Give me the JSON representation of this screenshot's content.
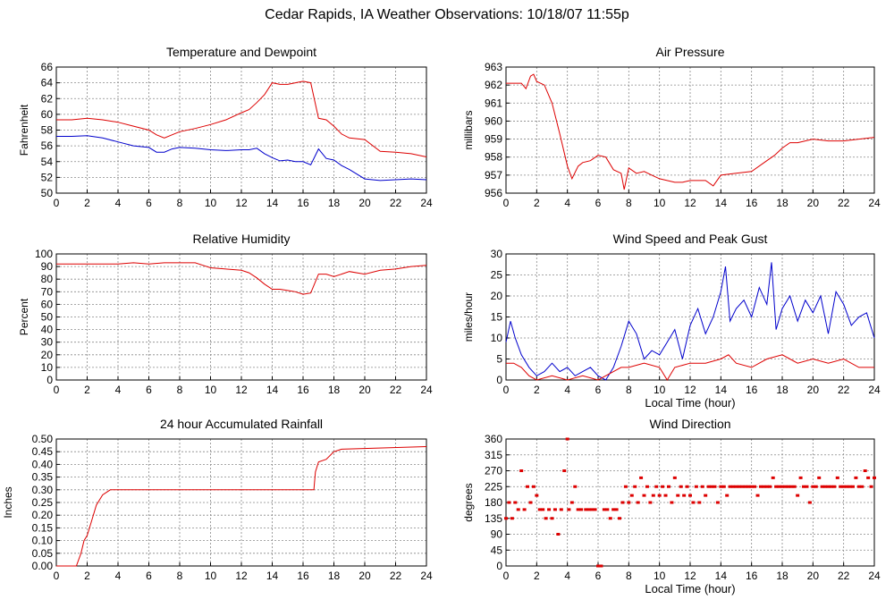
{
  "page_title": "Cedar Rapids, IA Weather Observations: 10/18/07 11:55p",
  "colors": {
    "red": "#dd0000",
    "blue": "#0000cc",
    "grid": "#888888"
  },
  "chart_data": [
    {
      "id": "temp",
      "type": "line",
      "title": "Temperature and Dewpoint",
      "ylabel": "Fahrenheit",
      "xlabel": "",
      "xlim": [
        0,
        24
      ],
      "ylim": [
        50,
        66
      ],
      "xticks": [
        0,
        2,
        4,
        6,
        8,
        10,
        12,
        14,
        16,
        18,
        20,
        22,
        24
      ],
      "yticks": [
        50,
        52,
        54,
        56,
        58,
        60,
        62,
        64,
        66
      ],
      "grid": true,
      "series": [
        {
          "color": "red",
          "x": [
            0,
            1,
            2,
            3,
            4,
            5,
            6,
            6.5,
            7,
            7.5,
            8,
            9,
            10,
            11,
            12,
            12.5,
            13,
            13.5,
            14,
            14.5,
            15,
            15.5,
            16,
            16.5,
            17,
            17.5,
            18,
            18.5,
            19,
            20,
            21,
            22,
            23,
            24
          ],
          "y": [
            59.3,
            59.3,
            59.5,
            59.3,
            59,
            58.5,
            58,
            57.4,
            57,
            57.4,
            57.8,
            58.2,
            58.7,
            59.3,
            60.2,
            60.6,
            61.5,
            62.5,
            64,
            63.8,
            63.8,
            64,
            64.2,
            64,
            59.5,
            59.3,
            58.5,
            57.5,
            57,
            56.8,
            55.3,
            55.2,
            55,
            54.6
          ]
        },
        {
          "color": "blue",
          "x": [
            0,
            1,
            2,
            3,
            4,
            5,
            6,
            6.5,
            7,
            7.5,
            8,
            9,
            10,
            11,
            12,
            12.5,
            13,
            13.5,
            14,
            14.5,
            15,
            15.5,
            16,
            16.5,
            17,
            17.5,
            18,
            18.5,
            19,
            20,
            21,
            22,
            23,
            24
          ],
          "y": [
            57.2,
            57.2,
            57.3,
            57,
            56.5,
            56,
            55.8,
            55.2,
            55.2,
            55.6,
            55.8,
            55.7,
            55.5,
            55.4,
            55.5,
            55.5,
            55.7,
            55,
            54.5,
            54.1,
            54.2,
            54,
            54,
            53.6,
            55.6,
            54.4,
            54.2,
            53.5,
            53,
            51.8,
            51.6,
            51.7,
            51.8,
            51.7
          ]
        }
      ]
    },
    {
      "id": "pressure",
      "type": "line",
      "title": "Air Pressure",
      "ylabel": "millibars",
      "xlabel": "",
      "xlim": [
        0,
        24
      ],
      "ylim": [
        956,
        963
      ],
      "xticks": [
        0,
        2,
        4,
        6,
        8,
        10,
        12,
        14,
        16,
        18,
        20,
        22,
        24
      ],
      "yticks": [
        956,
        957,
        958,
        959,
        960,
        961,
        962,
        963
      ],
      "grid": true,
      "series": [
        {
          "color": "red",
          "x": [
            0,
            0.5,
            1,
            1.3,
            1.6,
            1.8,
            2,
            2.5,
            3,
            3.5,
            4,
            4.3,
            4.7,
            5,
            5.5,
            6,
            6.5,
            7,
            7.5,
            7.7,
            8,
            8.5,
            9,
            9.5,
            10,
            11,
            11.5,
            12,
            13,
            13.5,
            14,
            15,
            16,
            17,
            17.5,
            18,
            18.5,
            19,
            20,
            21,
            22,
            23,
            24
          ],
          "y": [
            962.1,
            962.1,
            962.1,
            961.8,
            962.5,
            962.6,
            962.2,
            962,
            961,
            959.3,
            957.5,
            956.8,
            957.5,
            957.7,
            957.8,
            958.1,
            958,
            957.3,
            957.1,
            956.2,
            957.4,
            957.1,
            957.2,
            957,
            956.8,
            956.6,
            956.6,
            956.7,
            956.7,
            956.4,
            957,
            957.1,
            957.2,
            957.8,
            958.1,
            958.5,
            958.8,
            958.8,
            959,
            958.9,
            958.9,
            959,
            959.1
          ]
        }
      ]
    },
    {
      "id": "humidity",
      "type": "line",
      "title": "Relative Humidity",
      "ylabel": "Percent",
      "xlabel": "",
      "xlim": [
        0,
        24
      ],
      "ylim": [
        0,
        100
      ],
      "xticks": [
        0,
        2,
        4,
        6,
        8,
        10,
        12,
        14,
        16,
        18,
        20,
        22,
        24
      ],
      "yticks": [
        0,
        10,
        20,
        30,
        40,
        50,
        60,
        70,
        80,
        90,
        100
      ],
      "grid": true,
      "series": [
        {
          "color": "red",
          "x": [
            0,
            1,
            2,
            3,
            4,
            5,
            6,
            7,
            8,
            9,
            9.5,
            10,
            11,
            12,
            12.5,
            13,
            13.5,
            14,
            14.5,
            15,
            15.5,
            16,
            16.5,
            17,
            17.5,
            18,
            19,
            20,
            21,
            22,
            23,
            24
          ],
          "y": [
            92,
            92,
            92,
            92,
            92,
            93,
            92,
            93,
            93,
            93,
            91,
            89,
            88,
            87,
            85,
            81,
            76,
            72,
            72,
            71,
            70,
            68,
            69,
            84,
            84,
            82,
            86,
            84,
            87,
            88,
            90,
            91
          ]
        }
      ]
    },
    {
      "id": "wind",
      "type": "line",
      "title": "Wind Speed and Peak Gust",
      "ylabel": "miles/hour",
      "xlabel": "Local Time (hour)",
      "xlim": [
        0,
        24
      ],
      "ylim": [
        0,
        30
      ],
      "xticks": [
        0,
        2,
        4,
        6,
        8,
        10,
        12,
        14,
        16,
        18,
        20,
        22,
        24
      ],
      "yticks": [
        0,
        5,
        10,
        15,
        20,
        25,
        30
      ],
      "grid": true,
      "series": [
        {
          "color": "blue",
          "x": [
            0,
            0.3,
            0.6,
            1,
            1.5,
            2,
            2.5,
            3,
            3.5,
            4,
            4.5,
            5,
            5.5,
            6,
            6.5,
            7,
            7.5,
            8,
            8.5,
            9,
            9.5,
            10,
            10.5,
            11,
            11.5,
            12,
            12.5,
            13,
            13.5,
            14,
            14.3,
            14.6,
            15,
            15.5,
            16,
            16.5,
            17,
            17.3,
            17.6,
            18,
            18.5,
            19,
            19.5,
            20,
            20.5,
            21,
            21.5,
            22,
            22.5,
            23,
            23.5,
            24
          ],
          "y": [
            9,
            14,
            10,
            6,
            3,
            1,
            2,
            4,
            2,
            3,
            1,
            2,
            3,
            1,
            0,
            3,
            8,
            14,
            11,
            5,
            7,
            6,
            9,
            12,
            5,
            13,
            17,
            11,
            15,
            21,
            27,
            14,
            17,
            19,
            15,
            22,
            18,
            28,
            12,
            17,
            20,
            14,
            19,
            16,
            20,
            11,
            21,
            18,
            13,
            15,
            16,
            10
          ]
        },
        {
          "color": "red",
          "x": [
            0,
            0.5,
            1,
            1.5,
            2,
            3,
            4,
            5,
            6,
            7,
            7.5,
            8,
            9,
            10,
            10.5,
            11,
            12,
            13,
            14,
            14.5,
            15,
            16,
            17,
            18,
            19,
            20,
            21,
            22,
            23,
            24
          ],
          "y": [
            4,
            4,
            3,
            1,
            0,
            1,
            0,
            1,
            0,
            2,
            3,
            3,
            4,
            3,
            0,
            3,
            4,
            4,
            5,
            6,
            4,
            3,
            5,
            6,
            4,
            5,
            4,
            5,
            3,
            3
          ]
        }
      ]
    },
    {
      "id": "rain",
      "type": "line",
      "title": "24 hour Accumulated Rainfall",
      "ylabel": "Inches",
      "xlabel": "",
      "xlim": [
        0,
        24
      ],
      "ylim": [
        0,
        0.5
      ],
      "xticks": [
        0,
        2,
        4,
        6,
        8,
        10,
        12,
        14,
        16,
        18,
        20,
        22,
        24
      ],
      "yticks": [
        "0.00",
        "0.05",
        "0.10",
        "0.15",
        "0.20",
        "0.25",
        "0.30",
        "0.35",
        "0.40",
        "0.45",
        "0.50"
      ],
      "grid": true,
      "series": [
        {
          "color": "red",
          "x": [
            0,
            1.3,
            1.6,
            1.8,
            2,
            2.3,
            2.6,
            3,
            3.5,
            16.7,
            16.8,
            17,
            17.5,
            18,
            18.5,
            24
          ],
          "y": [
            0,
            0,
            0.05,
            0.1,
            0.12,
            0.18,
            0.24,
            0.28,
            0.3,
            0.3,
            0.37,
            0.41,
            0.42,
            0.45,
            0.46,
            0.47
          ]
        }
      ]
    },
    {
      "id": "winddir",
      "type": "scatter",
      "title": "Wind Direction",
      "ylabel": "degrees",
      "xlabel": "Local Time (hour)",
      "xlim": [
        0,
        24
      ],
      "ylim": [
        0,
        360
      ],
      "xticks": [
        0,
        2,
        4,
        6,
        8,
        10,
        12,
        14,
        16,
        18,
        20,
        22,
        24
      ],
      "yticks": [
        0,
        45,
        90,
        135,
        180,
        225,
        270,
        315,
        360
      ],
      "grid": true,
      "series": [
        {
          "color": "red",
          "x": [
            0,
            0.2,
            0.4,
            0.6,
            0.8,
            1,
            1.2,
            1.4,
            1.6,
            1.8,
            2,
            2.2,
            2.4,
            2.6,
            2.8,
            3,
            3.2,
            3.4,
            3.6,
            3.8,
            4,
            4.1,
            4.3,
            4.5,
            4.7,
            4.9,
            5.2,
            5.4,
            5.6,
            5.8,
            6,
            6.2,
            6.4,
            6.6,
            6.8,
            7,
            7.2,
            7.4,
            7.6,
            7.8,
            8,
            8.2,
            8.4,
            8.6,
            8.8,
            9,
            9.2,
            9.4,
            9.6,
            9.8,
            10,
            10.2,
            10.4,
            10.6,
            10.8,
            11,
            11.2,
            11.4,
            11.6,
            11.8,
            12,
            12.2,
            12.4,
            12.6,
            12.8,
            13,
            13.2,
            13.4,
            13.6,
            13.8,
            14,
            14.2,
            14.4,
            14.6,
            14.8,
            15,
            15.2,
            15.4,
            15.6,
            15.8,
            16,
            16.2,
            16.4,
            16.6,
            16.8,
            17,
            17.2,
            17.4,
            17.6,
            17.8,
            18,
            18.2,
            18.4,
            18.6,
            18.8,
            19,
            19.2,
            19.4,
            19.6,
            19.8,
            20,
            20.2,
            20.4,
            20.6,
            20.8,
            21,
            21.2,
            21.4,
            21.6,
            21.8,
            22,
            22.2,
            22.4,
            22.6,
            22.8,
            23,
            23.2,
            23.4,
            23.6,
            23.8,
            24
          ],
          "y": [
            135,
            180,
            135,
            180,
            160,
            270,
            160,
            225,
            180,
            225,
            200,
            160,
            160,
            135,
            160,
            135,
            160,
            90,
            160,
            270,
            360,
            160,
            180,
            225,
            160,
            160,
            160,
            160,
            160,
            160,
            0,
            0,
            160,
            160,
            135,
            160,
            160,
            135,
            180,
            225,
            180,
            200,
            225,
            180,
            250,
            200,
            225,
            180,
            200,
            225,
            200,
            225,
            200,
            225,
            180,
            250,
            200,
            225,
            200,
            225,
            200,
            180,
            225,
            180,
            225,
            200,
            225,
            225,
            225,
            180,
            225,
            225,
            200,
            225,
            225,
            225,
            225,
            225,
            225,
            225,
            225,
            225,
            200,
            225,
            225,
            225,
            225,
            250,
            225,
            225,
            225,
            225,
            225,
            225,
            225,
            200,
            250,
            225,
            225,
            180,
            225,
            225,
            250,
            225,
            225,
            225,
            225,
            225,
            250,
            225,
            225,
            225,
            225,
            225,
            250,
            225,
            225,
            270,
            250,
            225,
            250
          ]
        }
      ]
    }
  ]
}
